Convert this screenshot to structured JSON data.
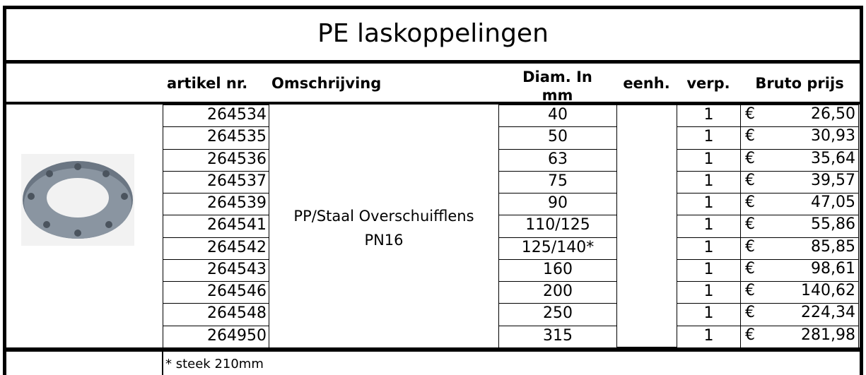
{
  "title": "PE laskoppelingen",
  "header": {
    "artikel": "artikel nr.",
    "omschrijving": "Omschrijving",
    "diameter": "Diam. In mm",
    "eenheid": "eenh.",
    "verpakking": "verp.",
    "prijs": "Bruto prijs"
  },
  "description": [
    "PP/Staal Overschuifflens",
    "PN16"
  ],
  "rows": [
    [
      "264534",
      "40",
      "1",
      "€",
      "26,50"
    ],
    [
      "264535",
      "50",
      "1",
      "€",
      "30,93"
    ],
    [
      "264536",
      "63",
      "1",
      "€",
      "35,64"
    ],
    [
      "264537",
      "75",
      "1",
      "€",
      "39,57"
    ],
    [
      "264539",
      "90",
      "1",
      "€",
      "47,05"
    ],
    [
      "264541",
      "110/125",
      "1",
      "€",
      "55,86"
    ],
    [
      "264542",
      "125/140*",
      "1",
      "€",
      "85,85"
    ],
    [
      "264543",
      "160",
      "1",
      "€",
      "98,61"
    ],
    [
      "264546",
      "200",
      "1",
      "€",
      "140,62"
    ],
    [
      "264548",
      "250",
      "1",
      "€",
      "224,34"
    ],
    [
      "264950",
      "315",
      "1",
      "€",
      "281,98"
    ]
  ],
  "footnote": "* steek 210mm"
}
